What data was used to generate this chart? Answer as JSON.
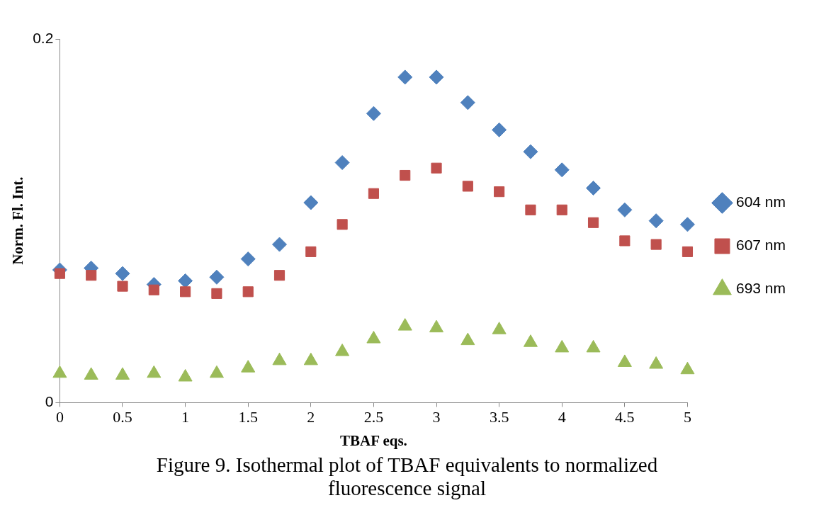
{
  "chart_data": {
    "type": "scatter",
    "xlabel": "TBAF eqs.",
    "ylabel": "Norm. Fl. Int.",
    "annotations": [
      "Figure 9.  Isothermal plot of TBAF equivalents to normalized fluorescence signal"
    ],
    "x": [
      0,
      0.25,
      0.5,
      0.75,
      1,
      1.25,
      1.5,
      1.75,
      2,
      2.25,
      2.5,
      2.75,
      3,
      3.25,
      3.5,
      3.75,
      4,
      4.25,
      4.5,
      4.75,
      5
    ],
    "xlim": [
      0,
      5
    ],
    "xticks": [
      0,
      0.5,
      1,
      1.5,
      2,
      2.5,
      3,
      3.5,
      4,
      4.5,
      5
    ],
    "ylim": [
      0,
      0.2
    ],
    "yticks": [
      0,
      0.2
    ],
    "grid": false,
    "legend": "right",
    "series": [
      {
        "name": "604 nm",
        "color": "#4f81bd",
        "marker": "diamond",
        "values": [
          0.073,
          0.074,
          0.071,
          0.065,
          0.067,
          0.069,
          0.079,
          0.087,
          0.11,
          0.132,
          0.159,
          0.179,
          0.179,
          0.165,
          0.15,
          0.138,
          0.128,
          0.118,
          0.106,
          0.1,
          0.098
        ]
      },
      {
        "name": "607 nm",
        "color": "#c0504d",
        "marker": "square",
        "values": [
          0.071,
          0.07,
          0.064,
          0.062,
          0.061,
          0.06,
          0.061,
          0.07,
          0.083,
          0.098,
          0.115,
          0.125,
          0.129,
          0.119,
          0.116,
          0.106,
          0.106,
          0.099,
          0.089,
          0.087,
          0.083
        ]
      },
      {
        "name": "693 nm",
        "color": "#9bbb59",
        "marker": "triangle",
        "values": [
          0.016,
          0.015,
          0.015,
          0.016,
          0.014,
          0.016,
          0.019,
          0.023,
          0.023,
          0.028,
          0.035,
          0.042,
          0.041,
          0.034,
          0.04,
          0.033,
          0.03,
          0.03,
          0.022,
          0.021,
          0.018
        ]
      }
    ]
  }
}
